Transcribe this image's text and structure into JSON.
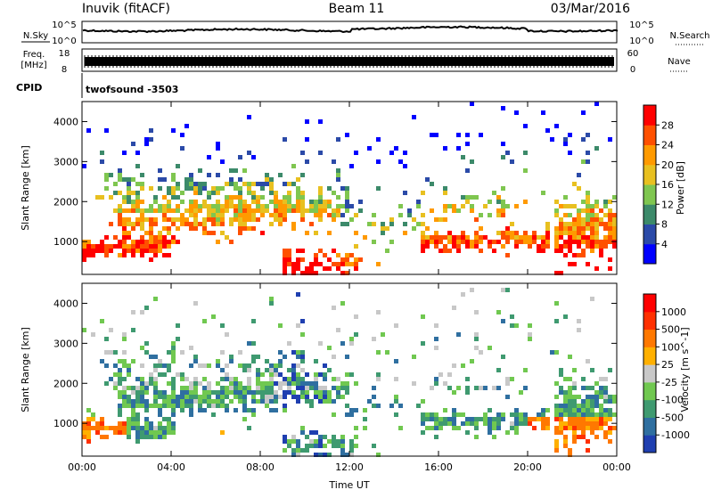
{
  "header": {
    "station": "Inuvik (fitACF)",
    "beam": "Beam 11",
    "date": "03/Mar/2016"
  },
  "strips": {
    "nsky_label": "N.Sky",
    "nsky_ticks": [
      "10^5",
      "10^0"
    ],
    "nsearch_label": "N.Search",
    "nsearch_ticks": [
      "10^5",
      "10^0"
    ],
    "freq_label": "Freq.",
    "freq_unit": "[MHz]",
    "freq_ticks": [
      "18",
      "8"
    ],
    "nave_label": "Nave",
    "nave_ticks": [
      "60",
      "0"
    ],
    "cpid_label": "CPID",
    "cpid_value": "twofsound -3503"
  },
  "chart_data": [
    {
      "type": "heatmap",
      "name": "power",
      "ylabel": "Slant Range [km]",
      "ylim": [
        180,
        4500
      ],
      "y_ticks": [
        "4000",
        "3000",
        "2000",
        "1000"
      ],
      "xlim": [
        0,
        24
      ],
      "colorbar_label": "Power [dB]",
      "colorbar_ticks": [
        "28",
        "24",
        "20",
        "16",
        "12",
        "8",
        "4"
      ],
      "colors": [
        "#0000ff",
        "#2b4aa8",
        "#3c8a6a",
        "#7fc650",
        "#e8c020",
        "#ff9a00",
        "#ff5000",
        "#ff0000"
      ]
    },
    {
      "type": "heatmap",
      "name": "velocity",
      "ylabel": "Slant Range [km]",
      "ylim": [
        180,
        4500
      ],
      "y_ticks": [
        "4000",
        "3000",
        "2000",
        "1000"
      ],
      "xlim": [
        0,
        24
      ],
      "xlabel": "Time UT",
      "x_ticks": [
        "00:00",
        "04:00",
        "08:00",
        "12:00",
        "16:00",
        "20:00",
        "00:00"
      ],
      "colorbar_label": "Velocity [m s^-1]",
      "colorbar_ticks": [
        "1000",
        "500",
        "100",
        "25",
        "-25",
        "-100",
        "-500",
        "-1000"
      ],
      "colors": [
        "#1f3fb0",
        "#2f6fa0",
        "#3f9a70",
        "#70c850",
        "#c8c8c8",
        "#ffb000",
        "#ff7800",
        "#ff3000",
        "#ff0000"
      ]
    }
  ]
}
